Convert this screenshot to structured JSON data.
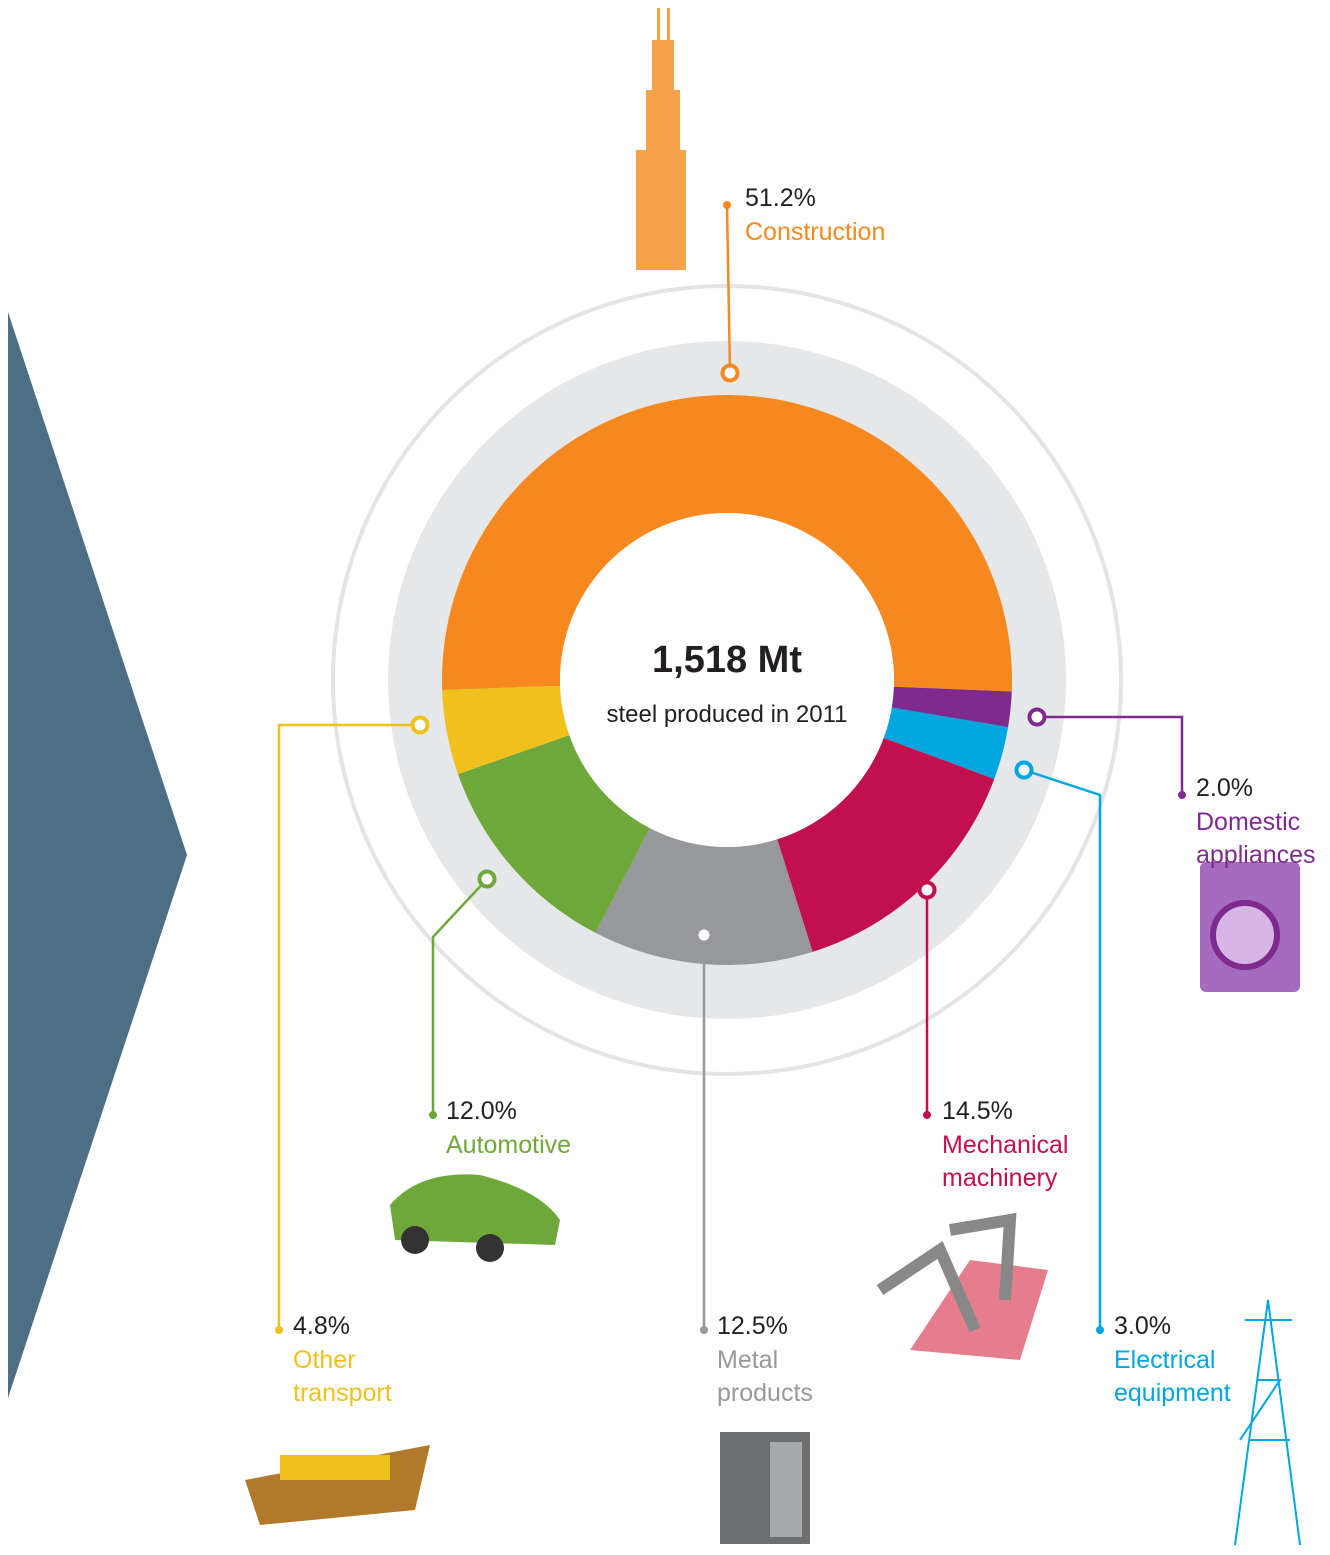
{
  "chart_data": {
    "type": "donut",
    "center_label": "1,518 Mt",
    "center_sublabel": "steel produced in 2011",
    "categories": [
      "Construction",
      "Domestic appliances",
      "Electrical equipment",
      "Mechanical machinery",
      "Metal products",
      "Automotive",
      "Other transport"
    ],
    "values": [
      51.2,
      2.0,
      3.0,
      14.5,
      12.5,
      12.0,
      4.8
    ],
    "value_labels": [
      "51.2%",
      "2.0%",
      "3.0%",
      "14.5%",
      "12.5%",
      "12.0%",
      "4.8%"
    ],
    "colors": [
      "#f5891f",
      "#7e2a8e",
      "#00a6e0",
      "#c2104f",
      "#97989b",
      "#6ea83a",
      "#f0c01d"
    ]
  }
}
